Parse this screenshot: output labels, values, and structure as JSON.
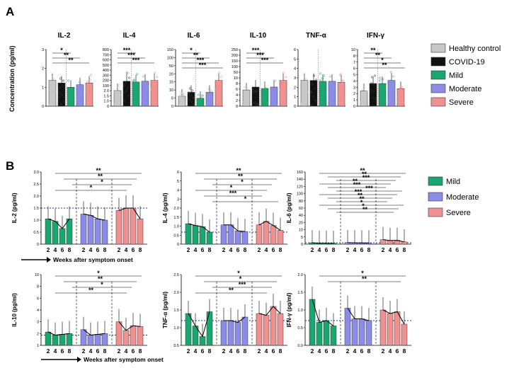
{
  "colors": {
    "healthy": "#c8c8c8",
    "covid": "#111111",
    "mild": "#1aa670",
    "moderate": "#8c8ce8",
    "severe": "#f09090"
  },
  "panel_labels": [
    "A",
    "B"
  ],
  "chart_data": [
    {
      "type": "bar",
      "panel": "A",
      "ylabel": "Concentration (pg/ml)",
      "legend": [
        "Healthy control",
        "COVID-19",
        "Mild",
        "Moderate",
        "Severe"
      ],
      "legend_position": "right",
      "subplots": [
        {
          "title": "IL-2",
          "ylim": [
            0,
            3
          ],
          "yticks": [
            "0",
            "1",
            "2",
            "3"
          ],
          "values": [
            1.5,
            1.35,
            1.1,
            1.25,
            1.35
          ],
          "significance": [
            "*",
            "**",
            "**"
          ]
        },
        {
          "title": "IL-4",
          "ylim": [
            0,
            800
          ],
          "yticks": [
            "0",
            "1.0",
            "1.5",
            "2.0",
            "100",
            "200",
            "300",
            "400",
            "500",
            "600",
            "700",
            "800"
          ],
          "values": [
            1.0,
            1.6,
            1.55,
            1.6,
            1.65
          ],
          "significance": [
            "***",
            "***",
            "***"
          ]
        },
        {
          "title": "IL-6",
          "ylim": [
            0,
            150
          ],
          "yticks": [
            "0",
            "5",
            "10",
            "15",
            "20",
            "50",
            "100",
            "150"
          ],
          "values": [
            5,
            7,
            4,
            7,
            13
          ],
          "significance": [
            "*",
            "**",
            "***",
            "***"
          ]
        },
        {
          "title": "IL-10",
          "ylim": [
            0,
            250
          ],
          "yticks": [
            "0",
            "2",
            "4",
            "6",
            "8",
            "10",
            "50",
            "100",
            "150",
            "200",
            "250"
          ],
          "values": [
            2.2,
            2.6,
            2.4,
            2.6,
            3.5
          ],
          "significance": [
            "***",
            "***",
            "***"
          ]
        },
        {
          "title": "TNF-α",
          "ylim": [
            0,
            6
          ],
          "yticks": [
            "0",
            "1",
            "2",
            "3",
            "4",
            "5",
            "6"
          ],
          "values": [
            1.4,
            1.4,
            1.35,
            1.35,
            1.3
          ],
          "significance": []
        },
        {
          "title": "IFN-γ",
          "ylim": [
            0,
            10
          ],
          "yticks": [
            "0",
            "1",
            "2",
            "3",
            "4",
            "5",
            "6",
            "7",
            "8",
            "10"
          ],
          "values": [
            1.5,
            2.2,
            2.2,
            2.5,
            1.7
          ],
          "significance": [
            "**",
            "**",
            "*",
            "**"
          ]
        }
      ]
    },
    {
      "type": "bar",
      "panel": "B",
      "xlabel": "Weeks after symptom onset",
      "x_weeks": [
        "2",
        "4",
        "6",
        "8"
      ],
      "legend": [
        "Mild",
        "Moderate",
        "Severe"
      ],
      "legend_position": "right",
      "subplots": [
        {
          "ylabel": "IL-2 (pg/ml)",
          "yticks": [
            "0",
            "0.5",
            "1.0",
            "1.5",
            "2.0",
            "2.5",
            "3.0"
          ],
          "ylim": [
            0,
            3
          ],
          "baseline": 1.5,
          "series": [
            {
              "name": "Mild",
              "values": [
                1.05,
                0.95,
                0.65,
                1.05
              ]
            },
            {
              "name": "Moderate",
              "values": [
                1.25,
                1.2,
                1.05,
                1.0
              ]
            },
            {
              "name": "Severe",
              "values": [
                1.4,
                1.5,
                1.5,
                1.05
              ]
            }
          ],
          "significance": [
            "**",
            "**",
            "*",
            "*"
          ]
        },
        {
          "ylabel": "IL-4 (pg/ml)",
          "yticks": [
            "0",
            "0.5",
            "1.0",
            "1.5",
            "2.0",
            "3",
            "4",
            "5",
            "6"
          ],
          "ylim": [
            0,
            6
          ],
          "baseline": 1.0,
          "series": [
            {
              "name": "Mild",
              "values": [
                1.7,
                1.55,
                1.45,
                1.0
              ]
            },
            {
              "name": "Moderate",
              "values": [
                1.6,
                1.6,
                1.1,
                1.05
              ]
            },
            {
              "name": "Severe",
              "values": [
                1.6,
                1.9,
                1.55,
                1.15
              ]
            }
          ],
          "significance": [
            "**",
            "**",
            "*",
            "*",
            "***",
            "*"
          ]
        },
        {
          "ylabel": "IL-6 (pg/ml)",
          "yticks": [
            "0",
            "5",
            "10",
            "20",
            "40",
            "60",
            "80",
            "100",
            "120",
            "140",
            "160"
          ],
          "ylim": [
            0,
            160
          ],
          "baseline": 3,
          "series": [
            {
              "name": "Mild",
              "values": [
                3,
                2,
                2,
                1.8
              ]
            },
            {
              "name": "Moderate",
              "values": [
                3.5,
                3,
                2.8,
                2.6
              ]
            },
            {
              "name": "Severe",
              "values": [
                10,
                8,
                8.5,
                5
              ]
            }
          ],
          "significance": [
            "**",
            "**",
            "***",
            "**",
            "***",
            "***",
            "***",
            "**",
            "**",
            "*",
            "*",
            "**"
          ]
        },
        {
          "ylabel": "IL-10 (pg/ml)",
          "yticks": [
            "1",
            "2",
            "3",
            "4",
            "6",
            "8",
            "10"
          ],
          "ylim": [
            1,
            10
          ],
          "baseline": 2.3,
          "series": [
            {
              "name": "Mild",
              "values": [
                2.7,
                2.3,
                2.4,
                2.5
              ]
            },
            {
              "name": "Moderate",
              "values": [
                3.0,
                2.3,
                2.4,
                2.5
              ]
            },
            {
              "name": "Severe",
              "values": [
                4.0,
                2.9,
                3.5,
                3.4
              ]
            }
          ],
          "significance": [
            "*",
            "**",
            "*",
            "**"
          ]
        },
        {
          "ylabel": "TNF-α (pg/ml)",
          "yticks": [
            "0.5",
            "1.0",
            "1.5",
            "2.0",
            "2.5"
          ],
          "ylim": [
            0.5,
            2.5
          ],
          "baseline": 1.2,
          "series": [
            {
              "name": "Mild",
              "values": [
                1.4,
                1.05,
                0.75,
                1.45
              ]
            },
            {
              "name": "Moderate",
              "values": [
                1.2,
                1.2,
                1.15,
                1.3
              ]
            },
            {
              "name": "Severe",
              "values": [
                1.4,
                1.35,
                1.6,
                1.4
              ]
            }
          ],
          "significance": [
            "*",
            "*",
            "***",
            "**"
          ]
        },
        {
          "ylabel": "IFN-γ (pg/ml)",
          "yticks": [
            "0.0",
            "0.5",
            "1.0",
            "1.5",
            "2.0"
          ],
          "ylim": [
            0,
            2
          ],
          "baseline": 0.7,
          "series": [
            {
              "name": "Mild",
              "values": [
                1.3,
                0.65,
                0.7,
                0.55
              ]
            },
            {
              "name": "Moderate",
              "values": [
                1.05,
                0.75,
                0.75,
                0.7
              ]
            },
            {
              "name": "Severe",
              "values": [
                1.0,
                0.9,
                0.95,
                0.6
              ]
            }
          ],
          "significance": [
            "*",
            "**"
          ]
        }
      ]
    }
  ]
}
